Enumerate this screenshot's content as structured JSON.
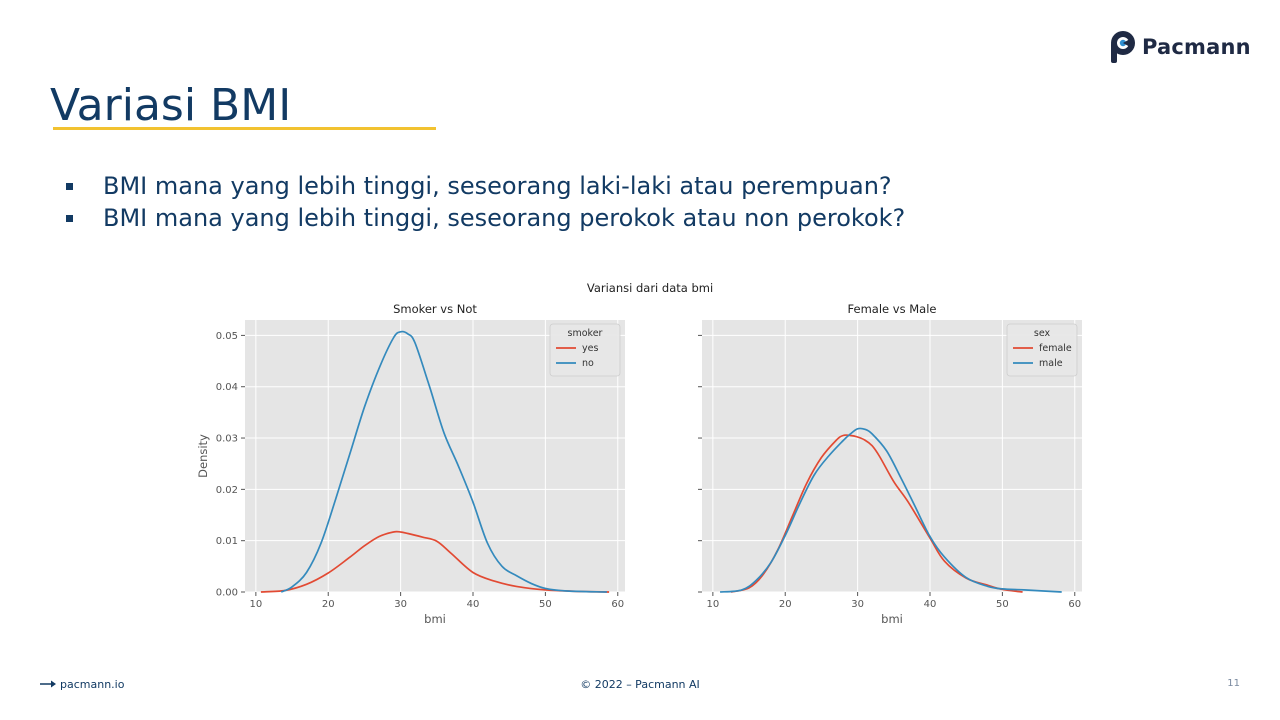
{
  "brand": {
    "name": "Pacmann"
  },
  "slide": {
    "title": "Variasi BMI",
    "bullets": [
      "BMI mana yang lebih tinggi, seseorang laki-laki atau perempuan?",
      "BMI mana yang lebih tinggi, seseorang perokok atau non perokok?"
    ]
  },
  "footer": {
    "site": "pacmann.io",
    "copyright": "© 2022 – Pacmann AI",
    "page": "11"
  },
  "colors": {
    "red": "#e24a33",
    "blue": "#348abd",
    "panel_bg": "#e5e5e5",
    "title_navy": "#123a63",
    "accent_yellow": "#f2c230"
  },
  "chart_data": {
    "suptitle": "Variansi dari data bmi",
    "shared_y": true,
    "ylabel": "Density",
    "ylim": [
      0,
      0.053
    ],
    "yticks": [
      "0.00",
      "0.01",
      "0.02",
      "0.03",
      "0.04",
      "0.05"
    ],
    "xlim": [
      8.5,
      61
    ],
    "xticks": [
      "10",
      "20",
      "30",
      "40",
      "50",
      "60"
    ],
    "charts": [
      {
        "type": "line",
        "title": "Smoker vs Not",
        "xlabel": "bmi",
        "legend_title": "smoker",
        "legend_position": "top-right",
        "series": [
          {
            "name": "yes",
            "color": "#e24a33",
            "x": [
              10.7,
              14,
              17,
              20,
              23,
              25,
              27,
              29,
              30,
              31,
              33,
              35,
              37,
              40,
              43,
              46,
              50,
              55,
              58.8
            ],
            "y": [
              0,
              0.0003,
              0.0015,
              0.0037,
              0.0068,
              0.009,
              0.0108,
              0.0117,
              0.0117,
              0.0114,
              0.0107,
              0.0099,
              0.0075,
              0.0038,
              0.0021,
              0.0011,
              0.0004,
              0.0001,
              0
            ]
          },
          {
            "name": "no",
            "color": "#348abd",
            "x": [
              13.5,
              15,
              17,
              19,
              21,
              23,
              25,
              27,
              29,
              30,
              31,
              32,
              34,
              36,
              38,
              40,
              42,
              44,
              46,
              48,
              50,
              53,
              58.5
            ],
            "y": [
              0,
              0.001,
              0.0038,
              0.0095,
              0.018,
              0.027,
              0.036,
              0.0435,
              0.0495,
              0.0507,
              0.0503,
              0.0485,
              0.04,
              0.031,
              0.0245,
              0.0175,
              0.0095,
              0.005,
              0.0032,
              0.0017,
              0.0007,
              0.0002,
              0
            ]
          }
        ]
      },
      {
        "type": "line",
        "title": "Female vs Male",
        "xlabel": "bmi",
        "legend_title": "sex",
        "legend_position": "top-right",
        "series": [
          {
            "name": "female",
            "color": "#e24a33",
            "x": [
              12.5,
              15,
              17,
              19,
              21,
              23,
              25,
              27,
              28,
              29,
              30,
              31,
              32,
              33,
              35,
              37,
              40,
              42,
              45,
              48,
              50,
              52.8
            ],
            "y": [
              0,
              0.0008,
              0.0035,
              0.0083,
              0.0148,
              0.0213,
              0.0262,
              0.0295,
              0.0305,
              0.0305,
              0.0302,
              0.0296,
              0.0285,
              0.0265,
              0.0215,
              0.0175,
              0.0105,
              0.006,
              0.0027,
              0.0013,
              0.0005,
              0
            ]
          },
          {
            "name": "male",
            "color": "#348abd",
            "x": [
              11,
              14,
              16,
              18,
              20,
              22,
              24,
              26,
              28,
              29,
              30,
              31,
              32,
              34,
              36,
              38,
              40,
              42,
              45,
              48,
              50,
              53,
              58.2
            ],
            "y": [
              0,
              0.0004,
              0.0023,
              0.0057,
              0.011,
              0.0172,
              0.0228,
              0.0265,
              0.0295,
              0.0308,
              0.0318,
              0.0317,
              0.0308,
              0.0275,
              0.0222,
              0.0165,
              0.0108,
              0.0068,
              0.0028,
              0.0011,
              0.0006,
              0.0004,
              0
            ]
          }
        ]
      }
    ]
  }
}
